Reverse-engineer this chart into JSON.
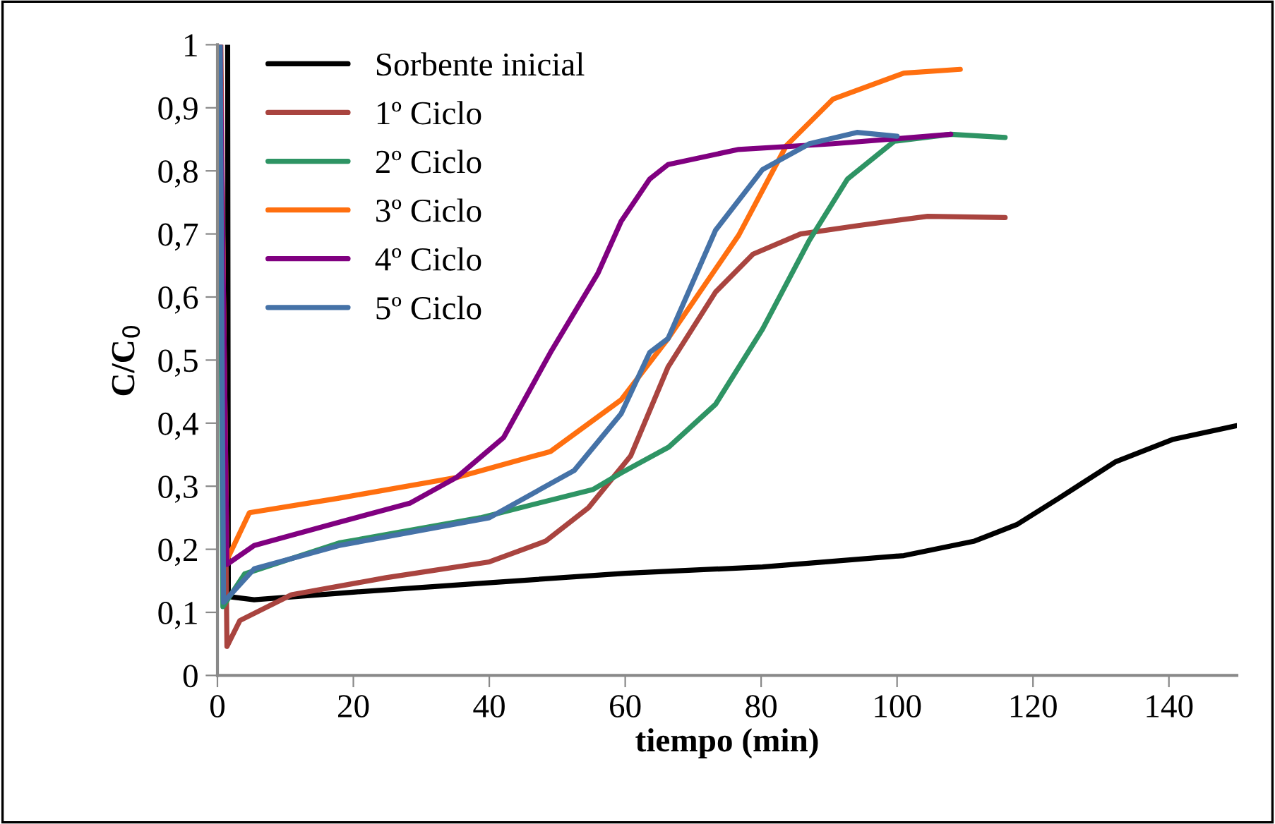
{
  "chart_data": {
    "type": "line",
    "xlabel": "tiempo (min)",
    "ylabel": "C/C$_{0}$",
    "xlim": [
      0,
      150
    ],
    "xticks": [
      0,
      20,
      40,
      60,
      80,
      100,
      120,
      140
    ],
    "ylim": [
      0,
      1
    ],
    "yticks": [
      {
        "value": 0,
        "label": "0"
      },
      {
        "value": 0.1,
        "label": "0,1"
      },
      {
        "value": 0.2,
        "label": "0,2"
      },
      {
        "value": 0.3,
        "label": "0,3"
      },
      {
        "value": 0.4,
        "label": "0,4"
      },
      {
        "value": 0.5,
        "label": "0,5"
      },
      {
        "value": 0.6,
        "label": "0,6"
      },
      {
        "value": 0.7,
        "label": "0,7"
      },
      {
        "value": 0.8,
        "label": "0,8"
      },
      {
        "value": 0.9,
        "label": "0,9"
      },
      {
        "value": 1,
        "label": "1"
      }
    ],
    "grid": false,
    "legend": "top left",
    "marker": "none",
    "line_style": "solid",
    "series": [
      {
        "name": "Sorbente inicial",
        "color": "#000000",
        "x": [
          1.5,
          1.6,
          5.4,
          20,
          38.7,
          60,
          80.2,
          101,
          111.4,
          117.6,
          123.8,
          132.2,
          140.5,
          150
        ],
        "values": [
          1,
          0.125,
          0.12,
          0.132,
          0.146,
          0.162,
          0.172,
          0.19,
          0.213,
          0.239,
          0.281,
          0.339,
          0.374,
          0.396
        ]
      },
      {
        "name": "1º Ciclo",
        "color": "#a9443f",
        "x": [
          0.5,
          1.4,
          3.3,
          10.9,
          24.8,
          40,
          48.3,
          54.6,
          60.8,
          66.3,
          73.3,
          78.8,
          85.8,
          94.1,
          104.5,
          115.9
        ],
        "values": [
          1,
          0.046,
          0.087,
          0.128,
          0.155,
          0.18,
          0.213,
          0.266,
          0.348,
          0.489,
          0.608,
          0.668,
          0.7,
          0.713,
          0.728,
          0.726
        ]
      },
      {
        "name": "2º Ciclo",
        "color": "#2e9464",
        "x": [
          0.3,
          0.8,
          4,
          17.9,
          38.7,
          55.3,
          59.4,
          66.4,
          73.3,
          80.2,
          87.1,
          92.7,
          99.6,
          107.9,
          115.9
        ],
        "values": [
          1,
          0.109,
          0.161,
          0.21,
          0.25,
          0.295,
          0.321,
          0.362,
          0.43,
          0.549,
          0.69,
          0.787,
          0.847,
          0.858,
          0.853
        ]
      },
      {
        "name": "3º Ciclo",
        "color": "#ff6f0f",
        "x": [
          0.4,
          1.4,
          4.7,
          17.9,
          35.2,
          49,
          59.4,
          66.3,
          76.7,
          83.7,
          90.6,
          101,
          109.3
        ],
        "values": [
          1,
          0.183,
          0.258,
          0.281,
          0.314,
          0.355,
          0.437,
          0.534,
          0.698,
          0.84,
          0.914,
          0.955,
          0.961
        ]
      },
      {
        "name": "4º Ciclo",
        "color": "#800080",
        "x": [
          0.4,
          1.4,
          5.4,
          17.9,
          28.3,
          35.2,
          42.1,
          49,
          56,
          59.4,
          63.6,
          66.3,
          76.7,
          90.6,
          107.9
        ],
        "values": [
          1,
          0.176,
          0.206,
          0.243,
          0.273,
          0.314,
          0.377,
          0.512,
          0.638,
          0.72,
          0.787,
          0.81,
          0.834,
          0.843,
          0.858
        ]
      },
      {
        "name": "5º Ciclo",
        "color": "#4572a7",
        "x": [
          0.4,
          0.9,
          5.4,
          17.9,
          40,
          52.5,
          59.4,
          63.6,
          66.3,
          73.3,
          80.2,
          87.1,
          94.1,
          100
        ],
        "values": [
          1,
          0.116,
          0.169,
          0.206,
          0.25,
          0.325,
          0.415,
          0.512,
          0.534,
          0.706,
          0.802,
          0.843,
          0.861,
          0.855
        ]
      }
    ]
  }
}
